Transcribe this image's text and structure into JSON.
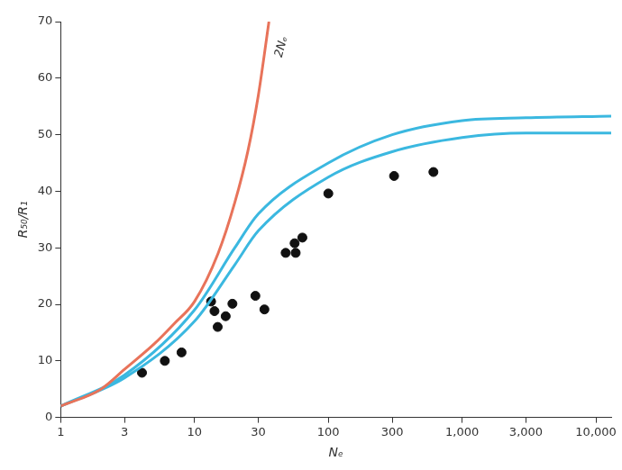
{
  "chart_data": {
    "type": "scatter",
    "x_label": "Nₑ",
    "y_label": "R₅₀/R₁",
    "log": "x",
    "grid": false,
    "xlim": [
      1,
      13000
    ],
    "ylim": [
      0,
      70
    ],
    "xticks": [
      1,
      3,
      10,
      30,
      100,
      300,
      {
        "value": 1000,
        "label": "1,000"
      },
      {
        "value": 3000,
        "label": "3,000"
      },
      {
        "value": 10000,
        "label": "10,000"
      }
    ],
    "yticks": [
      0,
      10,
      20,
      30,
      40,
      50,
      60,
      70
    ],
    "series": [
      {
        "name": "2Nₑ",
        "type": "line",
        "color": "#e8735a",
        "marker": "none",
        "line_style": "solid",
        "x": [
          1,
          2,
          3,
          5,
          7,
          10,
          15,
          20,
          25,
          30,
          36
        ],
        "values": [
          2,
          5,
          8.5,
          13,
          16.5,
          20.5,
          29,
          38,
          47,
          57,
          70
        ]
      },
      {
        "type": "line",
        "color": "#3bb8e0",
        "marker": "none",
        "line_style": "solid",
        "x": [
          1,
          3,
          10,
          20,
          30,
          100,
          300,
          1000,
          3000,
          13000
        ],
        "values": [
          2,
          7.5,
          19,
          30,
          36,
          45,
          50,
          52.5,
          53,
          53.3
        ]
      },
      {
        "type": "line",
        "color": "#3bb8e0",
        "marker": "none",
        "line_style": "solid",
        "x": [
          1,
          3,
          10,
          20,
          30,
          100,
          300,
          1000,
          3000,
          13000
        ],
        "values": [
          2,
          7,
          17,
          27,
          33,
          42.5,
          47,
          49.5,
          50.3,
          50.3
        ]
      },
      {
        "type": "scatter",
        "color": "#111111",
        "marker": "circle",
        "x": [
          4.05,
          6.0,
          8.0,
          13.3,
          14.1,
          14.9,
          17.1,
          19.2,
          28.5,
          33.3,
          48,
          56,
          57,
          64,
          100,
          310,
          610
        ],
        "values": [
          7.9,
          10,
          11.5,
          20.5,
          18.8,
          16,
          17.9,
          20.1,
          21.5,
          19.1,
          29.1,
          30.8,
          29.1,
          31.8,
          39.6,
          42.7,
          43.4
        ]
      }
    ]
  }
}
